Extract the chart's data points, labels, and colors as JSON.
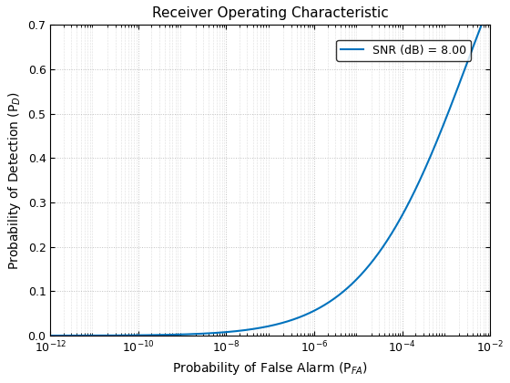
{
  "title": "Receiver Operating Characteristic",
  "xlabel": "Probability of False Alarm (P$_{FA}$)",
  "ylabel": "Probability of Detection (P$_D$)",
  "legend_label": "SNR (dB) = 8.00",
  "snr_db": 8.0,
  "xlim_log": [
    -12,
    -2
  ],
  "ylim": [
    0,
    0.7
  ],
  "line_color": "#0072BD",
  "line_width": 1.5,
  "grid_color": "#c0c0c0",
  "background_color": "#ffffff",
  "title_fontsize": 11,
  "label_fontsize": 10,
  "tick_fontsize": 9,
  "legend_fontsize": 9,
  "xtick_exponents": [
    -12,
    -10,
    -8,
    -6,
    -4,
    -2
  ],
  "yticks": [
    0.0,
    0.1,
    0.2,
    0.3,
    0.4,
    0.5,
    0.6,
    0.7
  ]
}
